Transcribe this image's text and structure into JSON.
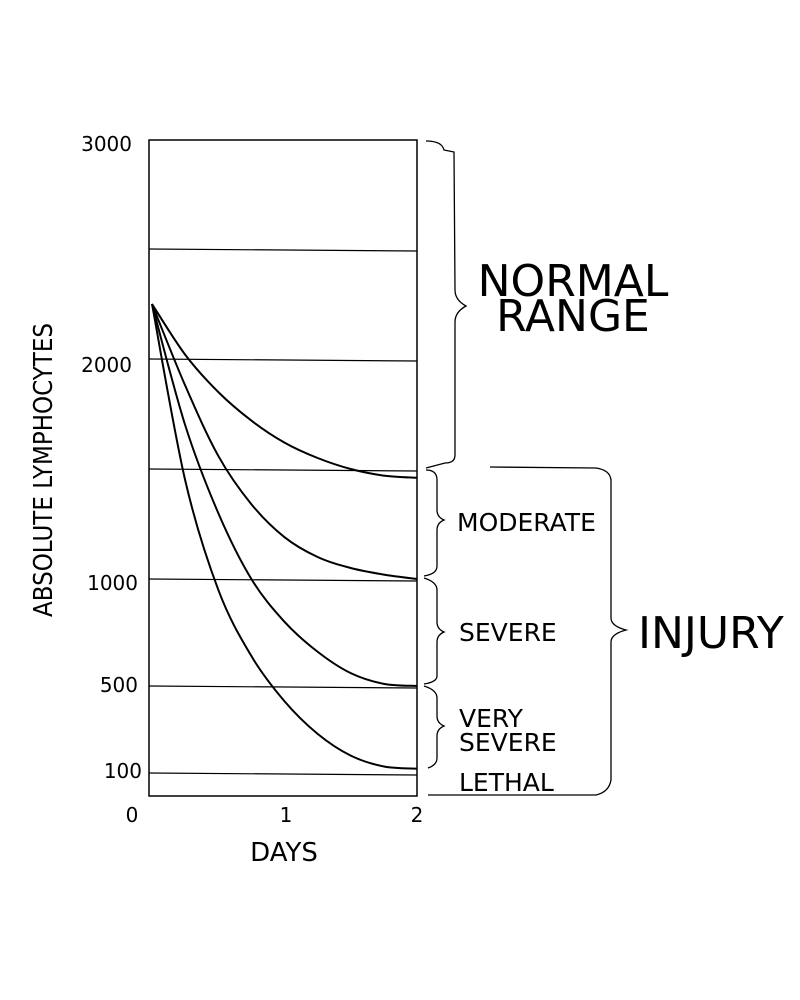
{
  "chart_data": {
    "type": "line",
    "xlabel": "DAYS",
    "ylabel": "ABSOLUTE LYMPHOCYTES",
    "x_ticks": [
      "0",
      "1",
      "2"
    ],
    "y_ticks": [
      "3000",
      "2000",
      "1000",
      "500",
      "100"
    ],
    "xlim": [
      0,
      2
    ],
    "grid_levels": [
      2500,
      2000,
      1500,
      1000,
      500,
      100
    ],
    "series": [
      {
        "x": [
          0,
          0.25,
          0.5,
          0.75,
          1.0,
          1.25,
          1.5,
          1.75,
          2.0
        ],
        "values": [
          2250,
          2020,
          1850,
          1720,
          1620,
          1550,
          1500,
          1470,
          1460
        ]
      },
      {
        "x": [
          0,
          0.25,
          0.5,
          0.75,
          1.0,
          1.25,
          1.5,
          1.75,
          2.0
        ],
        "values": [
          2250,
          1880,
          1560,
          1340,
          1190,
          1100,
          1050,
          1020,
          1000
        ]
      },
      {
        "x": [
          0,
          0.25,
          0.5,
          0.75,
          1.0,
          1.25,
          1.5,
          1.75,
          2.0
        ],
        "values": [
          2250,
          1700,
          1300,
          1000,
          800,
          660,
          560,
          510,
          500
        ]
      },
      {
        "x": [
          0,
          0.25,
          0.5,
          0.75,
          1.0,
          1.25,
          1.5,
          1.75,
          2.0
        ],
        "values": [
          2250,
          1450,
          950,
          640,
          430,
          280,
          180,
          130,
          120
        ]
      }
    ],
    "zones": [
      {
        "label": "NORMAL RANGE",
        "range": [
          1500,
          3000
        ]
      },
      {
        "label": "MODERATE",
        "range": [
          1000,
          1500
        ]
      },
      {
        "label": "SEVERE",
        "range": [
          500,
          1000
        ]
      },
      {
        "label": "VERY SEVERE",
        "range": [
          100,
          500
        ]
      },
      {
        "label": "LETHAL",
        "range": [
          0,
          100
        ]
      }
    ],
    "group": {
      "label": "INJURY",
      "range": [
        0,
        1500
      ]
    },
    "grid": true
  },
  "labels": {
    "normal_line1": "NORMAL",
    "normal_line2": "RANGE",
    "moderate": "MODERATE",
    "severe": "SEVERE",
    "very_severe_line1": "VERY",
    "very_severe_line2": "SEVERE",
    "lethal": "LETHAL",
    "injury": "INJURY"
  }
}
